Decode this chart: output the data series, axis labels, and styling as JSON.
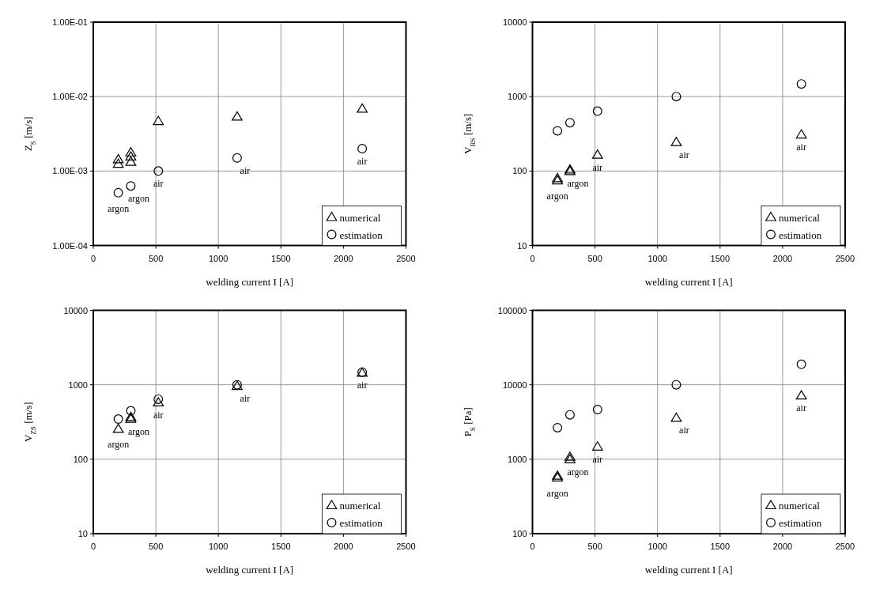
{
  "chart_data": [
    {
      "type": "scatter",
      "xlabel": "welding current I [A]",
      "ylabel": "Z$_{S}$ [m/s]",
      "log": true,
      "grid": true,
      "legend": "bottom right",
      "xlim": [
        0,
        2500
      ],
      "xticks": [
        0,
        500,
        1000,
        1500,
        2000,
        2500
      ],
      "ylim": [
        0.0001,
        0.1
      ],
      "yticks": [
        {
          "value": 0.0001,
          "label": "1.00E-04"
        },
        {
          "value": 0.001,
          "label": "1.00E-03"
        },
        {
          "value": 0.01,
          "label": "1.00E-02"
        },
        {
          "value": 0.1,
          "label": "1.00E-01"
        }
      ],
      "series": [
        {
          "name": "numerical",
          "color": "#000000",
          "marker": "triangle",
          "x": [
            200,
            200,
            300,
            300,
            300,
            520,
            1150,
            2150
          ],
          "values": [
            0.00125,
            0.00144,
            0.00133,
            0.00157,
            0.00178,
            0.0047,
            0.0054,
            0.0069
          ]
        },
        {
          "name": "estimation",
          "color": "#000000",
          "marker": "circle",
          "x": [
            200,
            300,
            520,
            1150,
            2150
          ],
          "values": [
            0.00051,
            0.00063,
            0.001,
            0.0015,
            0.002
          ]
        }
      ],
      "annotations": [
        {
          "text": "argon",
          "x": 200,
          "y": 0.00051
        },
        {
          "text": "argon",
          "x": 300,
          "y": 0.00063
        },
        {
          "text": "air",
          "x": 520,
          "y": 0.001
        },
        {
          "text": "air",
          "x": 1150,
          "y": 0.0015
        },
        {
          "text": "air",
          "x": 2150,
          "y": 0.002
        }
      ]
    },
    {
      "type": "scatter",
      "xlabel": "welding current I [A]",
      "ylabel": "V$_{RS}$ [m/s]",
      "log": true,
      "grid": true,
      "legend": "bottom right",
      "xlim": [
        0,
        2500
      ],
      "xticks": [
        0,
        500,
        1000,
        1500,
        2000,
        2500
      ],
      "ylim": [
        10,
        10000
      ],
      "yticks": [
        10,
        100,
        1000,
        10000
      ],
      "series": [
        {
          "name": "numerical",
          "color": "#000000",
          "marker": "triangle",
          "x": [
            200,
            200,
            300,
            300,
            520,
            1150,
            2150
          ],
          "values": [
            75,
            80,
            100,
            105,
            166,
            245,
            310
          ]
        },
        {
          "name": "estimation",
          "color": "#000000",
          "marker": "circle",
          "x": [
            200,
            300,
            520,
            1150,
            2150
          ],
          "values": [
            347,
            446,
            637,
            1000,
            1480
          ]
        }
      ],
      "annotations": [
        {
          "text": "argon",
          "x": 200,
          "y": 75
        },
        {
          "text": "argon",
          "x": 300,
          "y": 100
        },
        {
          "text": "air",
          "x": 520,
          "y": 166
        },
        {
          "text": "air",
          "x": 1150,
          "y": 245
        },
        {
          "text": "air",
          "x": 2150,
          "y": 310
        }
      ]
    },
    {
      "type": "scatter",
      "xlabel": "welding current I [A]",
      "ylabel": "V$_{ZS}$ [m/s]",
      "log": true,
      "grid": true,
      "legend": "bottom right",
      "xlim": [
        0,
        2500
      ],
      "xticks": [
        0,
        500,
        1000,
        1500,
        2000,
        2500
      ],
      "ylim": [
        10,
        10000
      ],
      "yticks": [
        10,
        100,
        1000,
        10000
      ],
      "series": [
        {
          "name": "numerical",
          "color": "#000000",
          "marker": "triangle",
          "x": [
            200,
            300,
            300,
            520,
            1150,
            2150
          ],
          "values": [
            256,
            350,
            370,
            580,
            965,
            1450
          ]
        },
        {
          "name": "estimation",
          "color": "#000000",
          "marker": "circle",
          "x": [
            200,
            300,
            520,
            1150,
            2150
          ],
          "values": [
            346,
            447,
            640,
            1000,
            1480
          ]
        }
      ],
      "annotations": [
        {
          "text": "argon",
          "x": 200,
          "y": 256
        },
        {
          "text": "argon",
          "x": 300,
          "y": 350
        },
        {
          "text": "air",
          "x": 520,
          "y": 580
        },
        {
          "text": "air",
          "x": 1150,
          "y": 965
        },
        {
          "text": "air",
          "x": 2150,
          "y": 1450
        }
      ]
    },
    {
      "type": "scatter",
      "xlabel": "welding current I [A]",
      "ylabel": "P$_{S}$ [Pa]",
      "log": true,
      "grid": true,
      "legend": "bottom right",
      "xlim": [
        0,
        2500
      ],
      "xticks": [
        0,
        500,
        1000,
        1500,
        2000,
        2500
      ],
      "ylim": [
        100,
        100000
      ],
      "yticks": [
        100,
        1000,
        10000,
        100000
      ],
      "series": [
        {
          "name": "numerical",
          "color": "#000000",
          "marker": "triangle",
          "x": [
            200,
            200,
            300,
            300,
            520,
            1150,
            2150
          ],
          "values": [
            570,
            600,
            1000,
            1080,
            1480,
            3600,
            7200
          ]
        },
        {
          "name": "estimation",
          "color": "#000000",
          "marker": "circle",
          "x": [
            200,
            300,
            520,
            1150,
            2150
          ],
          "values": [
            2650,
            3950,
            4650,
            10000,
            18800
          ]
        }
      ],
      "annotations": [
        {
          "text": "argon",
          "x": 200,
          "y": 570
        },
        {
          "text": "argon",
          "x": 300,
          "y": 1000
        },
        {
          "text": "air",
          "x": 520,
          "y": 1480
        },
        {
          "text": "air",
          "x": 1150,
          "y": 3600
        },
        {
          "text": "air",
          "x": 2150,
          "y": 7200
        }
      ]
    }
  ]
}
